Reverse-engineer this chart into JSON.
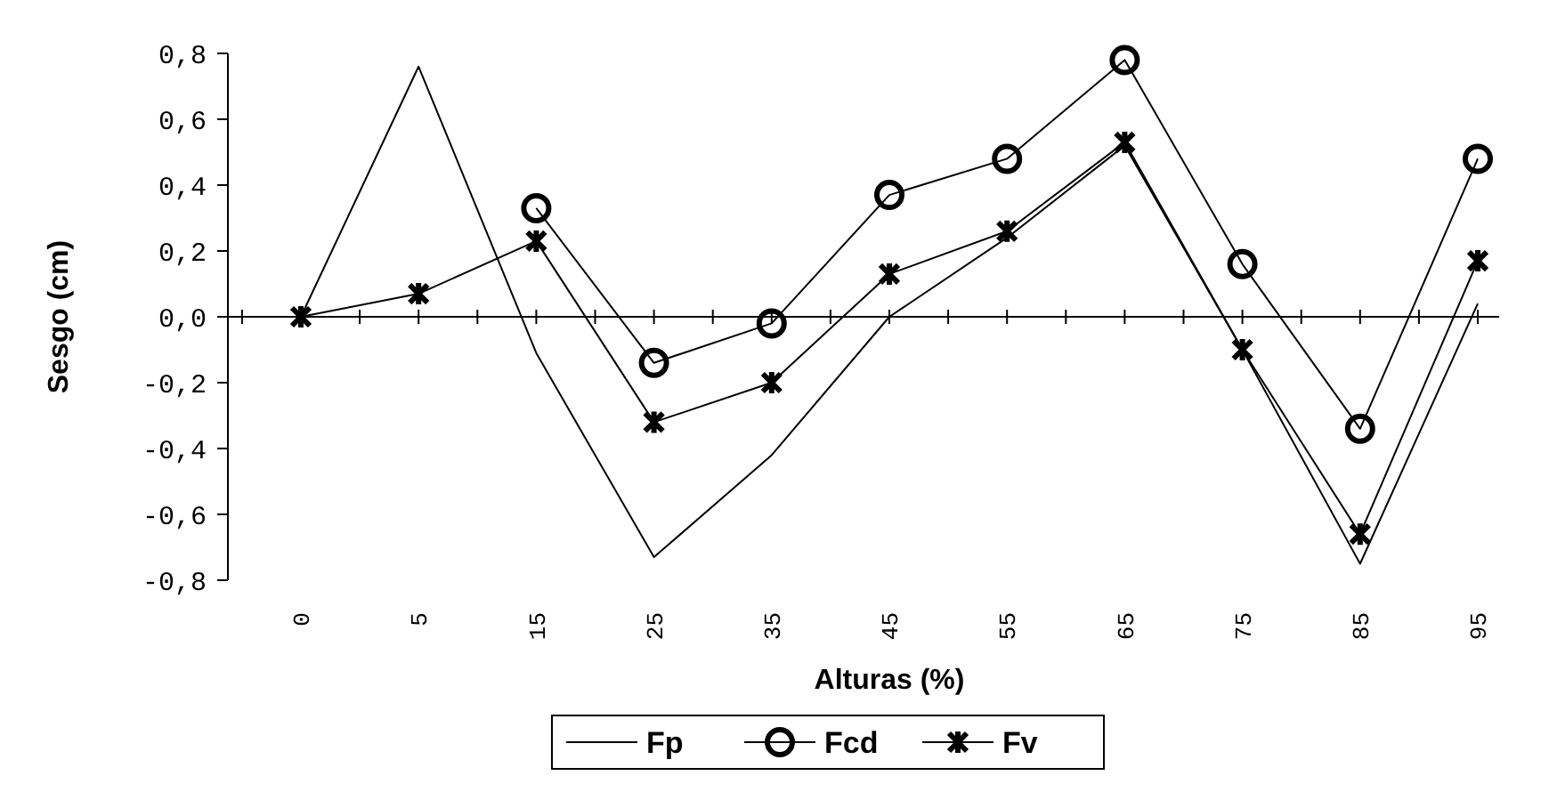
{
  "chart_data": {
    "type": "line",
    "xlabel": "Alturas (%)",
    "ylabel": "Sesgo (cm)",
    "categories": [
      "0",
      "5",
      "15",
      "25",
      "35",
      "45",
      "55",
      "65",
      "75",
      "85",
      "95"
    ],
    "ylim": [
      -0.8,
      0.8
    ],
    "yticks": [
      {
        "value": -0.8,
        "label": "-0,8"
      },
      {
        "value": -0.6,
        "label": "-0,6"
      },
      {
        "value": -0.4,
        "label": "-0,4"
      },
      {
        "value": -0.2,
        "label": "-0,2"
      },
      {
        "value": 0,
        "label": "0,0"
      },
      {
        "value": 0.2,
        "label": "0,2"
      },
      {
        "value": 0.4,
        "label": "0,4"
      },
      {
        "value": 0.6,
        "label": "0,6"
      },
      {
        "value": 0.8,
        "label": "0,8"
      }
    ],
    "legend": "bottom",
    "series": [
      {
        "name": "Fp",
        "color": "#000000",
        "marker": "none",
        "values": [
          0,
          0.76,
          -0.11,
          -0.73,
          -0.42,
          0,
          0.24,
          0.52,
          -0.1,
          -0.75,
          0.04
        ]
      },
      {
        "name": "Fcd",
        "color": "#000000",
        "marker": "circle",
        "values": [
          null,
          null,
          0.33,
          -0.14,
          -0.02,
          0.37,
          0.48,
          0.78,
          0.16,
          -0.34,
          0.48
        ]
      },
      {
        "name": "Fv",
        "color": "#000000",
        "marker": "cross",
        "values": [
          0,
          0.07,
          0.23,
          -0.32,
          -0.2,
          0.13,
          0.26,
          0.53,
          -0.1,
          -0.66,
          0.17
        ]
      }
    ]
  }
}
